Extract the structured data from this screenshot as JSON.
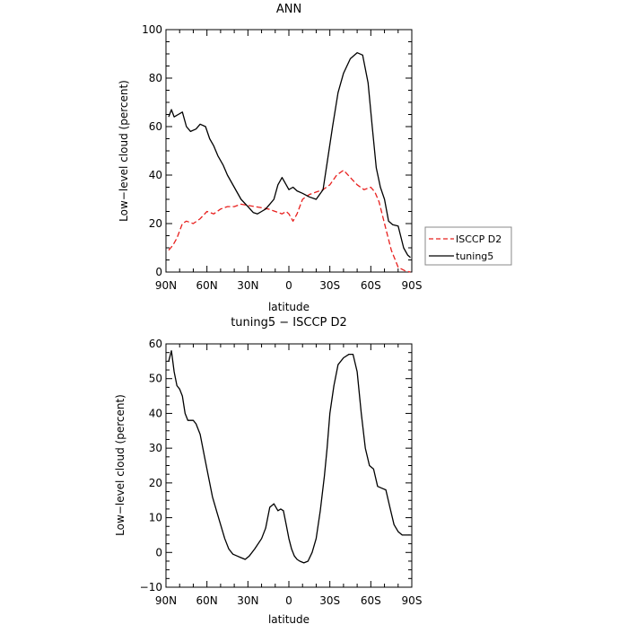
{
  "chart_data": [
    {
      "type": "line",
      "title": "ANN",
      "xlabel": "latitude",
      "ylabel": "Low−level cloud (percent)",
      "x_ticks": [
        90,
        60,
        30,
        0,
        -30,
        -60,
        -90
      ],
      "x_tick_labels": [
        "90N",
        "60N",
        "30N",
        "0",
        "30S",
        "60S",
        "90S"
      ],
      "xlim": [
        90,
        -90
      ],
      "y_ticks": [
        0,
        20,
        40,
        60,
        80,
        100
      ],
      "ylim": [
        0,
        100
      ],
      "legend_position": "right",
      "series": [
        {
          "name": "ISCCP D2",
          "color": "#e8201e",
          "dash": "dashed",
          "x": [
            88,
            85,
            82,
            78,
            75,
            70,
            65,
            60,
            55,
            50,
            45,
            40,
            35,
            30,
            25,
            20,
            15,
            10,
            5,
            2,
            0,
            -3,
            -6,
            -10,
            -15,
            -20,
            -25,
            -30,
            -35,
            -40,
            -45,
            -50,
            -55,
            -60,
            -63,
            -66,
            -70,
            -75,
            -80,
            -85,
            -89
          ],
          "values": [
            9,
            11,
            14,
            20,
            21,
            20,
            22,
            25,
            24,
            26,
            27,
            27,
            28,
            27.5,
            27,
            26.5,
            26,
            25,
            24,
            25,
            24,
            21,
            24,
            30,
            32,
            33,
            34,
            36,
            40,
            42,
            39,
            36,
            34,
            35,
            33,
            29,
            20,
            9,
            2,
            0.5,
            0
          ]
        },
        {
          "name": "tuning5",
          "color": "#000000",
          "dash": "solid",
          "x": [
            88,
            86,
            84,
            81,
            78,
            75,
            72,
            68,
            65,
            61,
            58,
            55,
            52,
            48,
            45,
            40,
            35,
            30,
            26,
            23,
            20,
            17,
            14,
            11,
            8,
            5,
            2,
            0,
            -3,
            -6,
            -10,
            -15,
            -20,
            -25,
            -28,
            -32,
            -36,
            -40,
            -45,
            -50,
            -54,
            -58,
            -61,
            -64,
            -67,
            -70,
            -73,
            -76,
            -80,
            -84,
            -87,
            -89
          ],
          "values": [
            64,
            67,
            64,
            65,
            66,
            60,
            58,
            59,
            61,
            60,
            55,
            52,
            48,
            44,
            40,
            35,
            30,
            27,
            24.5,
            24,
            25,
            26,
            28,
            30,
            36,
            39,
            36,
            34,
            35,
            33.5,
            32.5,
            31,
            30,
            34,
            45,
            60,
            74,
            82,
            88,
            90.5,
            89.5,
            78,
            60,
            43,
            35,
            30,
            21,
            19.5,
            19,
            10,
            7,
            6
          ]
        }
      ]
    },
    {
      "type": "line",
      "title": "tuning5 − ISCCP D2",
      "xlabel": "latitude",
      "ylabel": "Low−level cloud (percent)",
      "x_ticks": [
        90,
        60,
        30,
        0,
        -30,
        -60,
        -90
      ],
      "x_tick_labels": [
        "90N",
        "60N",
        "30N",
        "0",
        "30S",
        "60S",
        "90S"
      ],
      "xlim": [
        90,
        -90
      ],
      "y_ticks": [
        -10,
        0,
        10,
        20,
        30,
        40,
        50,
        60
      ],
      "ylim": [
        -10,
        60
      ],
      "series": [
        {
          "color": "#000000",
          "dash": "solid",
          "x": [
            88,
            86,
            84,
            82,
            80,
            78,
            76,
            74,
            72,
            70,
            68,
            65,
            62,
            59,
            56,
            53,
            50,
            47,
            44,
            41,
            38,
            35,
            32,
            29,
            25,
            20,
            17,
            14,
            11,
            8,
            6,
            4,
            2,
            0,
            -2,
            -4,
            -6,
            -8,
            -11,
            -14,
            -17,
            -20,
            -23,
            -26,
            -28,
            -30,
            -33,
            -36,
            -40,
            -44,
            -47,
            -50,
            -53,
            -56,
            -59,
            -62,
            -65,
            -68,
            -71,
            -74,
            -77,
            -80,
            -83,
            -86,
            -88,
            -89
          ],
          "values": [
            55,
            58,
            52,
            48,
            47,
            45,
            40,
            38,
            38,
            38,
            37,
            34,
            28,
            22,
            16,
            12,
            8,
            4,
            1,
            -0.5,
            -1,
            -1.5,
            -2,
            -1,
            1,
            4,
            7,
            13,
            14,
            12,
            12.5,
            12,
            8,
            4,
            1,
            -1,
            -2,
            -2.5,
            -3,
            -2.5,
            0,
            4,
            12,
            22,
            30,
            40,
            48,
            54,
            56,
            57,
            57,
            52,
            40,
            30,
            25,
            24,
            19,
            18.5,
            18,
            13,
            8,
            6,
            5,
            5,
            5,
            5
          ]
        }
      ]
    }
  ]
}
